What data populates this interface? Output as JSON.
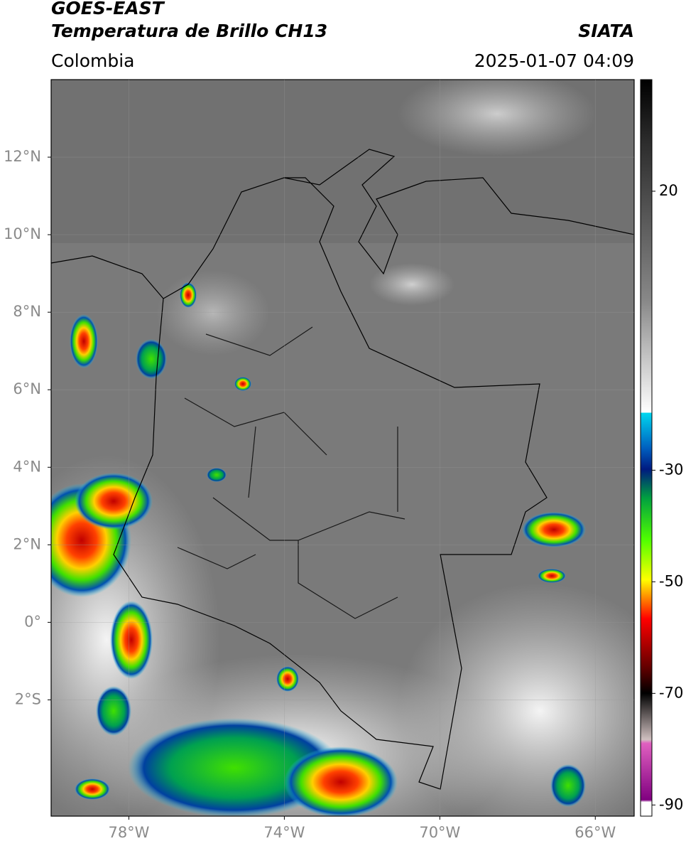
{
  "header": {
    "title": "GOES-EAST",
    "subtitle": "Temperatura de Brillo CH13",
    "source": "SIATA",
    "region": "Colombia",
    "timestamp": "2025-01-07 04:09"
  },
  "map": {
    "xlim": [
      -80,
      -65
    ],
    "ylim": [
      -5,
      14
    ],
    "xticks": [
      {
        "value": -78,
        "label": "78°W"
      },
      {
        "value": -74,
        "label": "74°W"
      },
      {
        "value": -70,
        "label": "70°W"
      },
      {
        "value": -66,
        "label": "66°W"
      }
    ],
    "yticks": [
      {
        "value": 12,
        "label": "12°N"
      },
      {
        "value": 10,
        "label": "10°N"
      },
      {
        "value": 8,
        "label": "8°N"
      },
      {
        "value": 6,
        "label": "6°N"
      },
      {
        "value": 4,
        "label": "4°N"
      },
      {
        "value": 2,
        "label": "2°N"
      },
      {
        "value": 0,
        "label": "0°"
      },
      {
        "value": -2,
        "label": "2°S"
      }
    ],
    "grid": true
  },
  "colorbar": {
    "lim": [
      -92,
      40
    ],
    "ticks": [
      20,
      -30,
      -50,
      -70,
      -90
    ]
  }
}
